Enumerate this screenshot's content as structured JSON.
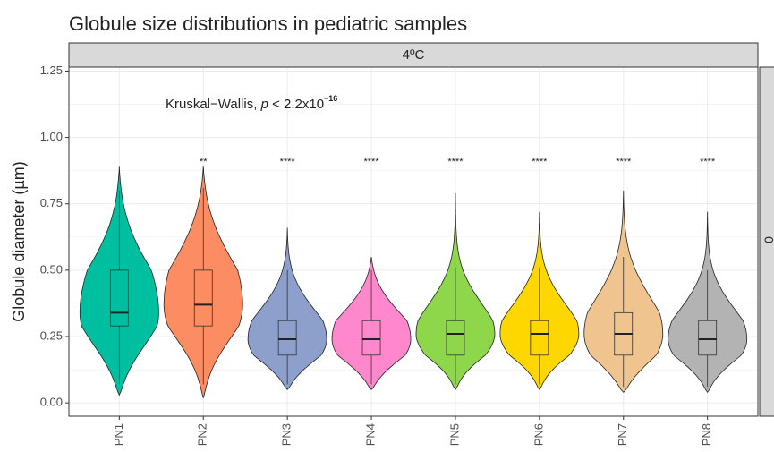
{
  "chart_data": {
    "type": "violin",
    "title": "Globule size distributions in pediatric samples",
    "facet_top": "4ºC",
    "facet_right": "0",
    "y_label": "Globule diameter (µm)",
    "annotation": [
      "Kruskal−Wallis, ",
      "p",
      " < 2.2x10",
      "−16"
    ],
    "categories": [
      "PN1",
      "PN2",
      "PN3",
      "PN4",
      "PN5",
      "PN6",
      "PN7",
      "PN8"
    ],
    "colors": [
      "#00BFA0",
      "#FC8D62",
      "#8DA0CB",
      "#FF88CC",
      "#8ED64A",
      "#FFD700",
      "#F0C48E",
      "#B3B3B3"
    ],
    "significance": [
      null,
      "**",
      "****",
      "****",
      "****",
      "****",
      "****",
      "****"
    ],
    "violin_range": [
      [
        0.03,
        0.89
      ],
      [
        0.02,
        0.89
      ],
      [
        0.05,
        0.66
      ],
      [
        0.05,
        0.55
      ],
      [
        0.05,
        0.79
      ],
      [
        0.05,
        0.72
      ],
      [
        0.04,
        0.8
      ],
      [
        0.04,
        0.72
      ]
    ],
    "boxes": [
      {
        "min": 0.07,
        "q1": 0.29,
        "median": 0.34,
        "q3": 0.5,
        "max": 0.8
      },
      {
        "min": 0.07,
        "q1": 0.29,
        "median": 0.37,
        "q3": 0.5,
        "max": 0.81
      },
      {
        "min": 0.07,
        "q1": 0.18,
        "median": 0.24,
        "q3": 0.31,
        "max": 0.5
      },
      {
        "min": 0.07,
        "q1": 0.18,
        "median": 0.24,
        "q3": 0.31,
        "max": 0.5
      },
      {
        "min": 0.07,
        "q1": 0.18,
        "median": 0.26,
        "q3": 0.31,
        "max": 0.51
      },
      {
        "min": 0.07,
        "q1": 0.18,
        "median": 0.26,
        "q3": 0.31,
        "max": 0.51
      },
      {
        "min": 0.06,
        "q1": 0.18,
        "median": 0.26,
        "q3": 0.34,
        "max": 0.55
      },
      {
        "min": 0.06,
        "q1": 0.18,
        "median": 0.24,
        "q3": 0.31,
        "max": 0.5
      }
    ],
    "ylim": [
      -0.05,
      1.265
    ],
    "yticks": [
      {
        "value": 0,
        "label": "0.00"
      },
      {
        "value": 0.25,
        "label": "0.25"
      },
      {
        "value": 0.5,
        "label": "0.50"
      },
      {
        "value": 0.75,
        "label": "0.75"
      },
      {
        "value": 1,
        "label": "1.00"
      },
      {
        "value": 1.25,
        "label": "1.25"
      }
    ],
    "grid": true
  }
}
